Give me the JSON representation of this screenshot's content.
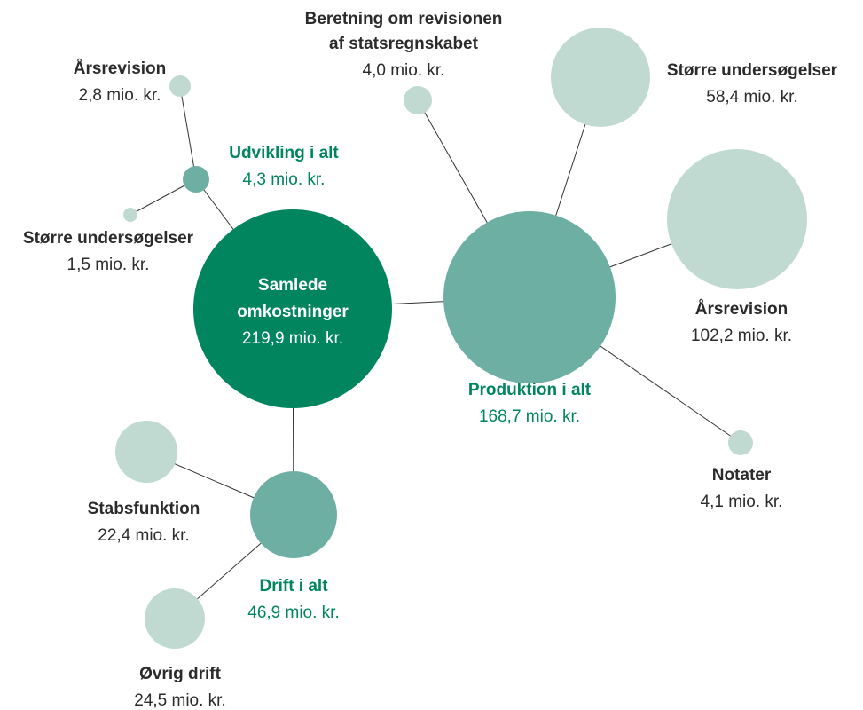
{
  "nodes": [
    {
      "label_lines": [
        "Samlede",
        "omkostninger"
      ],
      "value": "219,9 mio. kr."
    },
    {
      "label_lines": [
        "Produktion i alt"
      ],
      "value": "168,7 mio. kr."
    },
    {
      "label_lines": [
        "Udvikling i alt"
      ],
      "value": "4,3 mio. kr."
    },
    {
      "label_lines": [
        "Drift i alt"
      ],
      "value": "46,9 mio. kr."
    },
    {
      "label_lines": [
        "Årsrevision"
      ],
      "value": "2,8 mio. kr."
    },
    {
      "label_lines": [
        "Større undersøgelser"
      ],
      "value": "1,5 mio. kr."
    },
    {
      "label_lines": [
        "Stabsfunktion"
      ],
      "value": "22,4 mio. kr."
    },
    {
      "label_lines": [
        "Øvrig drift"
      ],
      "value": "24,5 mio. kr."
    },
    {
      "label_lines": [
        "Beretning om revisionen",
        "af statsregnskabet"
      ],
      "value": "4,0 mio. kr."
    },
    {
      "label_lines": [
        "Større undersøgelser"
      ],
      "value": "58,4 mio. kr."
    },
    {
      "label_lines": [
        "Årsrevision"
      ],
      "value": "102,2 mio. kr."
    },
    {
      "label_lines": [
        "Notater"
      ],
      "value": "4,1 mio. kr."
    }
  ]
}
